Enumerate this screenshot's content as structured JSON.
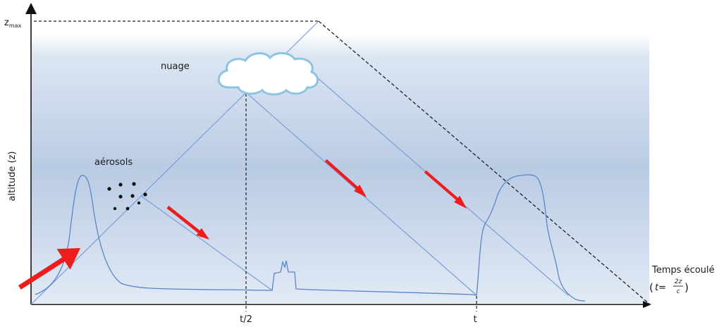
{
  "figure": {
    "y_axis_label": "altitude (z)",
    "z_max_label": "z",
    "z_max_sub": "max",
    "x_axis_label": "Temps écoulé",
    "formula_open": "(",
    "formula_t": "t",
    "formula_eq": " = ",
    "formula_num": "2z",
    "formula_den": "c",
    "formula_close": ")",
    "tick_half": "t/2",
    "tick_t": "t",
    "cloud_label": "nuage",
    "aerosol_label": "aérosols",
    "colors": {
      "beam": "#7b9fd4",
      "signal": "#5a86c8",
      "arrow": "#ee1c1c",
      "cloud": "#8dc4e0",
      "sky_top": "#b7c8e2",
      "sky_bottom": "#e6edf7"
    }
  }
}
